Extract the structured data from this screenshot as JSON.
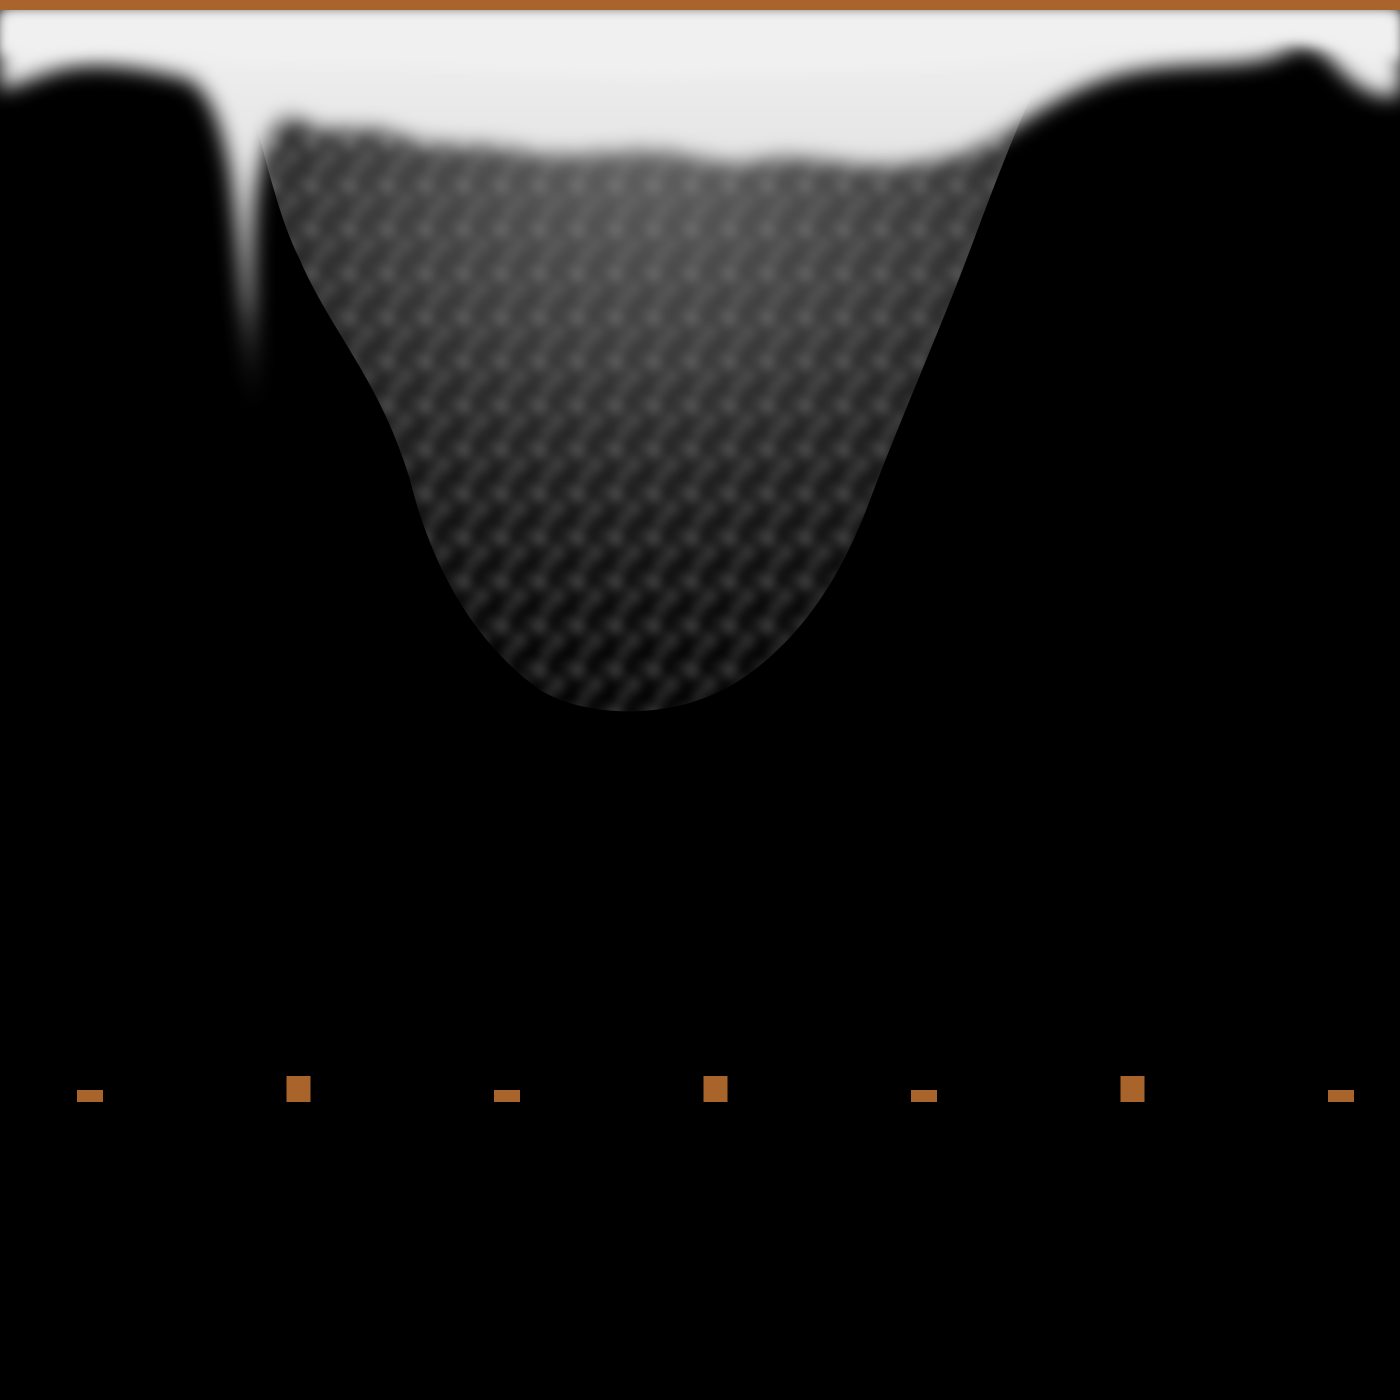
{
  "image": {
    "kind": "ultrasound-scan",
    "background_color": "#000000",
    "echo_color": "#eeeeee"
  },
  "overlay": {
    "accent_color": "#a8642a",
    "top_marker_bar": {
      "visible": true
    },
    "depth_markers": [
      {
        "kind": "minor"
      },
      {
        "kind": "major"
      },
      {
        "kind": "minor"
      },
      {
        "kind": "major"
      },
      {
        "kind": "minor"
      },
      {
        "kind": "major"
      },
      {
        "kind": "minor"
      }
    ]
  }
}
